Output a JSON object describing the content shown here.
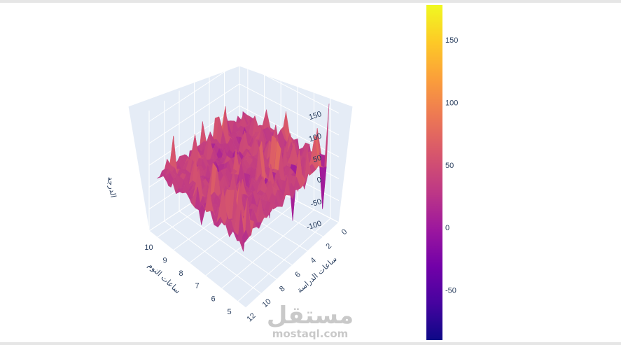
{
  "chart_data": {
    "type": "surface",
    "title": "",
    "x_axis": {
      "title": "ساعات الدراسة",
      "ticks": [
        0,
        2,
        4,
        6,
        8,
        10,
        12
      ],
      "range": [
        0,
        12
      ]
    },
    "y_axis": {
      "title": "ساعات النوم",
      "ticks": [
        5,
        6,
        7,
        8,
        9,
        10
      ],
      "range": [
        4.5,
        10.5
      ]
    },
    "z_axis": {
      "title": "الدرجة",
      "ticks": [
        -100,
        -50,
        0,
        50,
        100,
        150
      ],
      "range": [
        -100,
        175
      ]
    },
    "colorscale": "plasma",
    "colors": [
      "#0d0887",
      "#46039f",
      "#7201a8",
      "#9c179e",
      "#bd3786",
      "#d8576b",
      "#ed7953",
      "#fb9f3a",
      "#fdca26",
      "#f0f921"
    ],
    "colorbar": {
      "ticks": [
        -50,
        0,
        50,
        100,
        150
      ],
      "range": [
        -90,
        178
      ]
    },
    "surface_summary": {
      "z_min": -80,
      "z_max": 165,
      "baseline_z": 35,
      "notable_points": [
        {
          "x": 0.2,
          "y": 5.0,
          "z": 165
        },
        {
          "x": 0.5,
          "y": 5.2,
          "z": -75
        },
        {
          "x": 3.0,
          "y": 6.0,
          "z": -80
        },
        {
          "x": 5.0,
          "y": 6.5,
          "z": -55
        }
      ]
    }
  },
  "watermark": {
    "arabic": "مستقل",
    "latin": "mostaql.com"
  }
}
